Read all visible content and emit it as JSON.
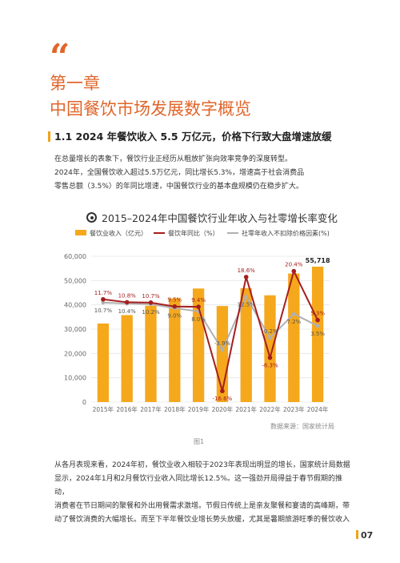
{
  "chapter": {
    "quote_mark": "“",
    "number": "第一章",
    "title": "中国餐饮市场发展数字概览"
  },
  "section": {
    "title": "1.1 2024 年餐饮收入 5.5 万亿元，价格下行致大盘增速放缓"
  },
  "paragraph1": {
    "line1": "在总量增长的表象下，餐饮行业正经历从粗放扩张向效率竞争的深度转型。",
    "line2": "2024年，全国餐饮收入超过5.5万亿元，同比增长5.3%，增速高于社会消费品",
    "line3": "零售总额（3.5%）的年同比增速，中国餐饮行业的基本盘规模仍在稳步扩大。"
  },
  "chart_title": "2015–2024年中国餐饮行业年收入与社零增长率变化",
  "chart_data": {
    "type": "bar+line",
    "categories": [
      "2015年",
      "2016年",
      "2017年",
      "2018年",
      "2019年",
      "2020年",
      "2021年",
      "2022年",
      "2023年",
      "2024年"
    ],
    "series": [
      {
        "name": "餐饮业收入（亿元）",
        "type": "bar",
        "axis": "left",
        "values": [
          32310,
          35799,
          39644,
          42716,
          46721,
          39527,
          46895,
          43941,
          52890,
          55718
        ],
        "labels": [
          "",
          "",
          "",
          "",
          "",
          "",
          "",
          "",
          "",
          "55,718"
        ],
        "color": "#f5a81c"
      },
      {
        "name": "餐饮年同比（%）",
        "type": "line",
        "axis": "right",
        "values": [
          11.7,
          10.8,
          10.7,
          9.5,
          9.4,
          -16.6,
          18.6,
          -6.3,
          20.4,
          5.3
        ],
        "labels": [
          "11.7%",
          "10.8%",
          "10.7%",
          "9.5%",
          "9.4%",
          "-16.6%",
          "18.6%",
          "-6.3%",
          "20.4%",
          "5.3%"
        ],
        "color": "#a61e1e"
      },
      {
        "name": "社零年收入不扣除价格因素(%)",
        "type": "line",
        "axis": "right",
        "values": [
          10.7,
          10.4,
          10.2,
          9.0,
          8.0,
          -3.9,
          12.5,
          -0.2,
          7.2,
          3.5
        ],
        "labels": [
          "10.7%",
          "10.4%",
          "10.2%",
          "9.0%",
          "8.0%",
          "-3.9%",
          "12.5%",
          "-0.2%",
          "7.2%",
          "3.5%"
        ],
        "color": "#b0b0b0"
      }
    ],
    "y_left": {
      "min": 0,
      "max": 60000,
      "ticks": [
        0,
        10000,
        20000,
        30000,
        40000,
        50000,
        60000
      ],
      "tick_labels": [
        "0",
        "10,000",
        "20,000",
        "30,000",
        "40,000",
        "50,000",
        "60,000"
      ]
    },
    "grid": true,
    "legend_position": "top"
  },
  "source": "数据来源：国家统计局",
  "figure_caption": "图1",
  "paragraph2": {
    "line1": "从各月表现来看，2024年初，餐饮业收入相较于2023年表现出明显的增长，国家统计局数据",
    "line2": "显示，2024年1月和2月餐饮行业收入同比增长12.5%。这一强劲开局得益于春节假期的推动，",
    "line3": "消费者在节日期间的聚餐和外出用餐需求激增。节假日传统上是亲友聚餐和宴请的高峰期，带",
    "line4": "动了餐饮消费的大幅增长。而至下半年餐饮业增长势头放缓，尤其是暑期旅游旺季的餐饮收入"
  },
  "page_number": "07"
}
